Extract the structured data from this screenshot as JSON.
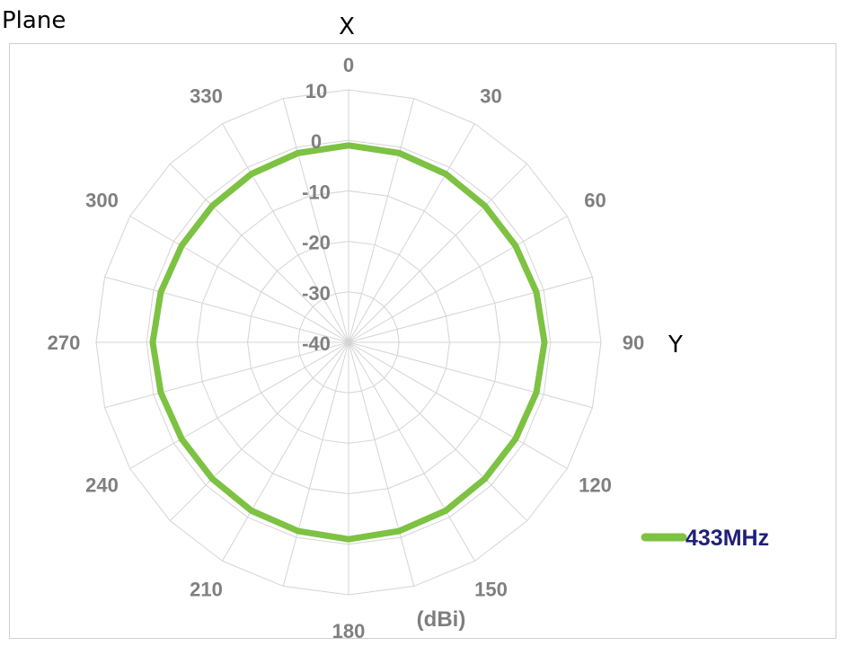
{
  "header": {
    "plane_label": "Plane"
  },
  "chart_data": {
    "type": "radar",
    "projection": "polar",
    "angle_direction": "clockwise",
    "angle_zero": "top",
    "angular_ticks": [
      0,
      30,
      60,
      90,
      120,
      150,
      180,
      210,
      240,
      270,
      300,
      330
    ],
    "angular_tick_labels": [
      "0",
      "30",
      "60",
      "90",
      "120",
      "150",
      "180",
      "210",
      "240",
      "270",
      "300",
      "330"
    ],
    "spoke_step_deg": 15,
    "radial_range": [
      -40,
      10
    ],
    "radial_ticks": [
      -40,
      -30,
      -20,
      -10,
      0,
      10
    ],
    "radial_tick_labels": [
      "-40",
      "-30",
      "-20",
      "-10",
      "0",
      "10"
    ],
    "unit_label": "(dBi)",
    "axis_labels": {
      "top": "X",
      "right": "Y"
    },
    "legend_position": "right",
    "series": [
      {
        "name": "433MHz",
        "color": "#7dc242",
        "angles": [
          0,
          15,
          30,
          45,
          60,
          75,
          90,
          105,
          120,
          135,
          150,
          165,
          180,
          195,
          210,
          225,
          240,
          255,
          270,
          285,
          300,
          315,
          330,
          345
        ],
        "values": [
          -1,
          -1.2,
          -1.5,
          -1.8,
          -1.8,
          -1.5,
          -1.2,
          -1.5,
          -1.8,
          -1.8,
          -1.5,
          -1.3,
          -1,
          -1.3,
          -1.5,
          -1.8,
          -1.8,
          -1.5,
          -1.2,
          -1.5,
          -1.8,
          -1.8,
          -1.5,
          -1.2
        ]
      }
    ],
    "colors": {
      "grid": "#d4d4d4",
      "tick_text": "#7f7f7f",
      "legend_text": "#1f1f7a"
    }
  }
}
